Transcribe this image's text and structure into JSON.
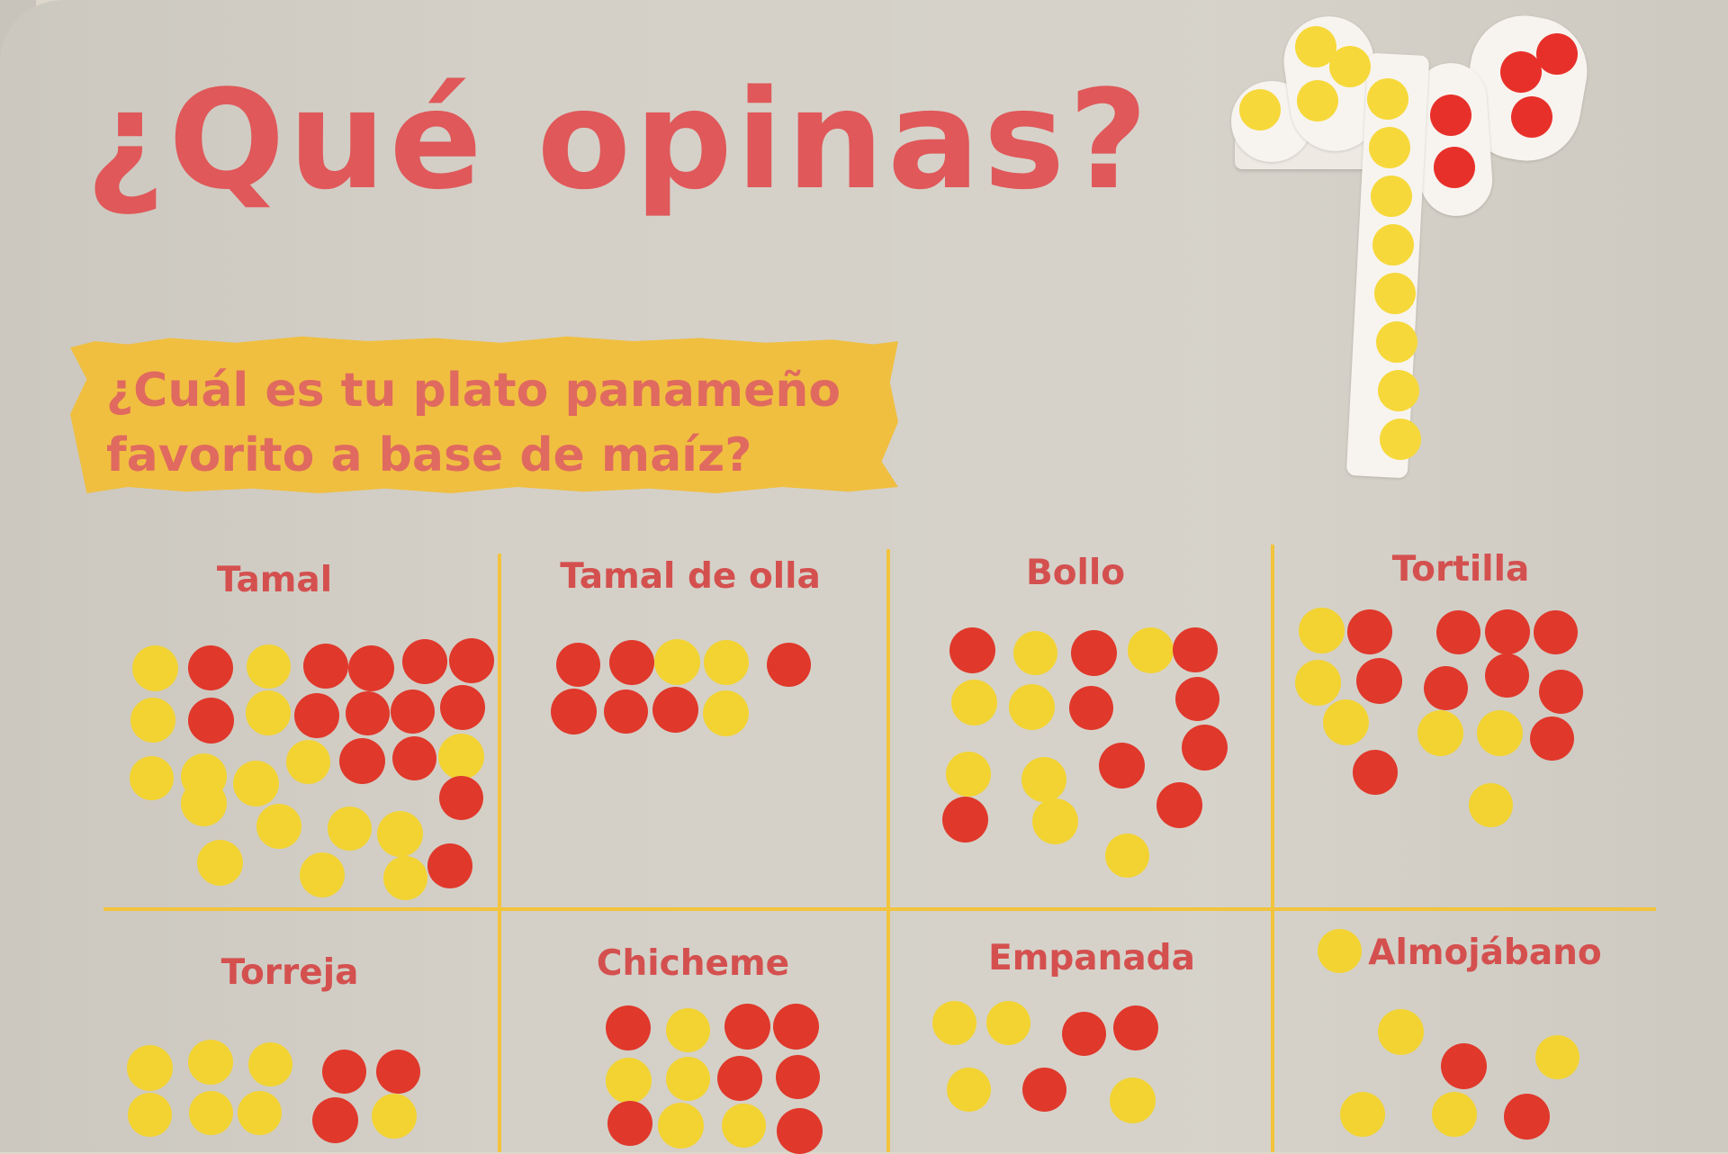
{
  "title": "¿Qué opinas?",
  "question": {
    "line1": "¿Cuál es tu plato panameño",
    "line2": "favorito a base de maíz?"
  },
  "colors": {
    "title": "#e0585a",
    "banner": "#f0bf40",
    "grid": "#f2c33c",
    "red_sticker": "#e0382b",
    "yellow_sticker": "#f2d332"
  },
  "options": [
    {
      "label": "Tamal"
    },
    {
      "label": "Tamal de olla"
    },
    {
      "label": "Bollo"
    },
    {
      "label": "Tortilla"
    },
    {
      "label": "Torreja"
    },
    {
      "label": "Chicheme"
    },
    {
      "label": "Empanada"
    },
    {
      "label": "Almojábano"
    }
  ]
}
